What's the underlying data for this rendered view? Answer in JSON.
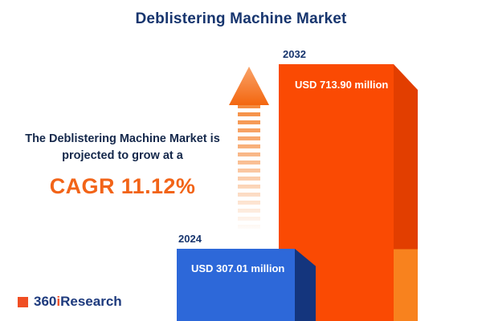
{
  "page": {
    "title": "Deblistering Machine Market",
    "background": "#ffffff"
  },
  "annotation": {
    "line1": "The Deblistering  Machine Market is",
    "line2": "projected to grow at a",
    "cagr": "CAGR 11.12%"
  },
  "logo": {
    "prefix": "360",
    "i": "i",
    "suffix": "Research"
  },
  "chart_data": {
    "type": "bar",
    "title": "Deblistering Machine Market",
    "categories": [
      "2024",
      "2032"
    ],
    "values": [
      307.01,
      713.9
    ],
    "unit": "USD million",
    "value_labels": [
      "USD 307.01 million",
      "USD 713.90 million"
    ],
    "cagr_percent": 11.12,
    "legend_position": "none",
    "grid": false,
    "colors": {
      "bar_2024_front": "#2d68d9",
      "bar_2024_side": "#14357d",
      "bar_2032_front": "#fa4a03",
      "bar_2032_side": "#e23e00",
      "accent_orange": "#f26418",
      "navy": "#17356e"
    }
  }
}
